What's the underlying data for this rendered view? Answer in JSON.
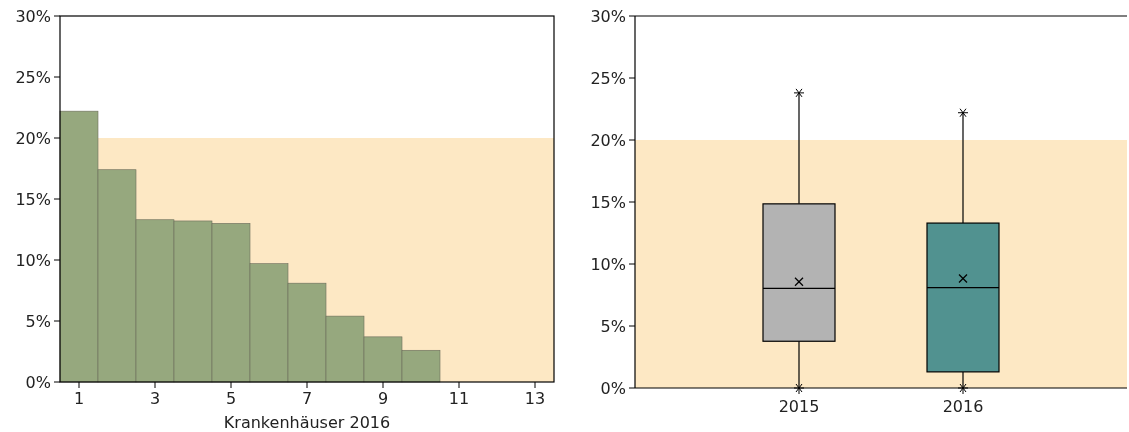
{
  "chart_data": [
    {
      "type": "bar",
      "xlabel": "Krankenhäuser 2016",
      "x": [
        1,
        2,
        3,
        4,
        5,
        6,
        7,
        8,
        9,
        10,
        11,
        12,
        13
      ],
      "values": [
        22.2,
        17.4,
        13.3,
        13.2,
        13.0,
        9.7,
        8.1,
        5.4,
        3.7,
        2.6,
        0,
        0,
        0
      ],
      "color": "#96a87e",
      "xlim": [
        0.5,
        13.5
      ],
      "xticks": [
        1,
        3,
        5,
        7,
        9,
        11,
        13
      ],
      "ylim": [
        0,
        30
      ],
      "yticks": [
        {
          "value": 0,
          "label": "0%"
        },
        {
          "value": 5,
          "label": "5%"
        },
        {
          "value": 10,
          "label": "10%"
        },
        {
          "value": 15,
          "label": "15%"
        },
        {
          "value": 20,
          "label": "20%"
        },
        {
          "value": 25,
          "label": "25%"
        },
        {
          "value": 30,
          "label": "30%"
        }
      ],
      "bands": [
        {
          "axis": "y",
          "from": 0,
          "to": 20,
          "color": "#fde8c4"
        }
      ]
    },
    {
      "type": "box",
      "categories": [
        "2015",
        "2016"
      ],
      "colors": [
        "#b3b3b3",
        "#519290"
      ],
      "boxes": [
        {
          "low": 0,
          "q1": 3.77,
          "median": 8.04,
          "q3": 14.85,
          "high": 23.8,
          "mean": 8.57,
          "outliers": [
            23.8,
            0
          ]
        },
        {
          "low": 0,
          "q1": 1.3,
          "median": 8.1,
          "q3": 13.3,
          "high": 22.2,
          "mean": 8.83,
          "outliers": [
            22.2,
            0
          ]
        }
      ],
      "ylim": [
        0,
        30
      ],
      "yticks": [
        {
          "value": 0,
          "label": "0%"
        },
        {
          "value": 5,
          "label": "5%"
        },
        {
          "value": 10,
          "label": "10%"
        },
        {
          "value": 15,
          "label": "15%"
        },
        {
          "value": 20,
          "label": "20%"
        },
        {
          "value": 25,
          "label": "25%"
        },
        {
          "value": 30,
          "label": "30%"
        }
      ],
      "bands": [
        {
          "axis": "y",
          "from": 0,
          "to": 20,
          "color": "#fde8c4"
        }
      ]
    }
  ]
}
